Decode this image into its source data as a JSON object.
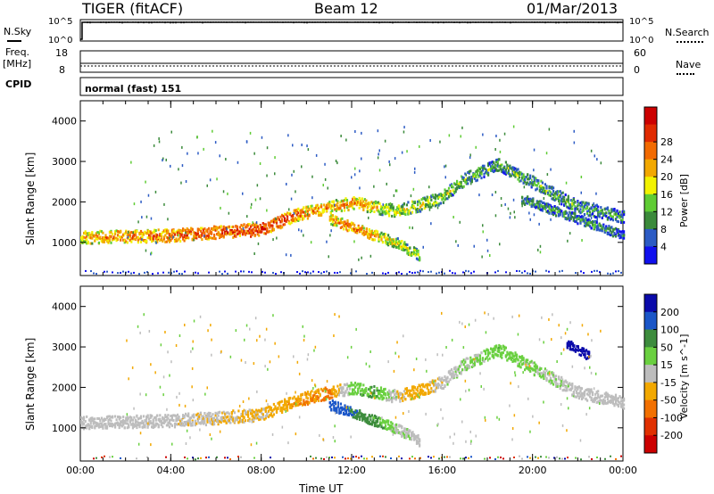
{
  "header": {
    "radar": "TIGER (fitACF)",
    "beam": "Beam 12",
    "date": "01/Mar/2013"
  },
  "strips": {
    "nsky_label": "N.Sky",
    "nsearch_label": "N.Search",
    "power_ticks": [
      "10^5",
      "10^0"
    ],
    "freq_label_top": "Freq.",
    "freq_label_bottom": "[MHz]",
    "freq_ticks": [
      "18",
      "8"
    ],
    "nave_label": "Nave",
    "nave_ticks": [
      "60",
      "0"
    ],
    "cpid_label": "CPID",
    "cpid_value": "normal (fast) 151"
  },
  "chart_data": [
    {
      "type": "heatmap",
      "title": "",
      "xlabel": "Time UT",
      "ylabel": "Slant Range [km]",
      "x_ticks": [
        "00:00",
        "04:00",
        "08:00",
        "12:00",
        "16:00",
        "20:00",
        "00:00"
      ],
      "y_ticks": [
        1000,
        2000,
        3000,
        4000
      ],
      "xlim_hours": [
        0,
        24
      ],
      "ylim_km": [
        180,
        4500
      ],
      "colorbar": {
        "label": "Power [dB]",
        "ticks": [
          4,
          8,
          12,
          16,
          20,
          24,
          28
        ],
        "colors": [
          "#1010ee",
          "#2c5bc4",
          "#3b8a3b",
          "#5fcc34",
          "#f2f200",
          "#f2a800",
          "#f26a00",
          "#e02a00",
          "#cc0000"
        ]
      },
      "bands": [
        {
          "t": [
            0,
            4,
            8,
            9.5,
            11,
            12,
            13,
            14,
            15,
            16,
            17,
            18.5,
            20,
            22,
            24
          ],
          "r": [
            1150,
            1200,
            1350,
            1700,
            1900,
            2000,
            1900,
            1800,
            1950,
            2150,
            2600,
            2950,
            2500,
            1900,
            1650
          ],
          "thick_km": 220,
          "power_db": [
            20,
            24,
            27,
            24,
            20,
            22,
            18,
            16,
            15,
            14,
            12,
            11,
            12,
            11,
            10
          ]
        },
        {
          "t": [
            11,
            12,
            13,
            14,
            15
          ],
          "r": [
            1600,
            1400,
            1200,
            1000,
            700
          ],
          "thick_km": 180,
          "power_db": [
            20,
            24,
            20,
            16,
            14
          ]
        },
        {
          "t": [
            19.5,
            21,
            22.5,
            24
          ],
          "r": [
            2100,
            1800,
            1500,
            1200
          ],
          "thick_km": 160,
          "power_db": [
            10,
            9,
            10,
            8
          ]
        }
      ]
    },
    {
      "type": "heatmap",
      "title": "",
      "xlabel": "Time UT",
      "ylabel": "Slant Range [km]",
      "x_ticks": [
        "00:00",
        "04:00",
        "08:00",
        "12:00",
        "16:00",
        "20:00",
        "00:00"
      ],
      "y_ticks": [
        1000,
        2000,
        3000,
        4000
      ],
      "xlim_hours": [
        0,
        24
      ],
      "ylim_km": [
        180,
        4500
      ],
      "colorbar": {
        "label": "Velocity [m s^-1]",
        "ticks": [
          200,
          100,
          50,
          15,
          -15,
          -50,
          -100,
          -200
        ],
        "colors": [
          "#0a0aaa",
          "#1a56c8",
          "#3d8c3d",
          "#6ad040",
          "#bdbdbd",
          "#f2a800",
          "#f27000",
          "#e03000",
          "#cc0000"
        ]
      },
      "bands": [
        {
          "t": [
            0,
            4,
            8,
            9.5,
            11,
            12,
            13,
            14,
            15,
            16,
            17,
            18.5,
            20,
            22,
            24
          ],
          "r": [
            1150,
            1200,
            1350,
            1700,
            1900,
            2000,
            1900,
            1800,
            1950,
            2150,
            2600,
            2950,
            2500,
            1900,
            1650
          ],
          "thick_km": 220,
          "velocity": [
            0,
            0,
            -20,
            -40,
            -60,
            30,
            60,
            -10,
            -40,
            0,
            10,
            40,
            20,
            0,
            0
          ]
        },
        {
          "t": [
            11,
            12,
            13,
            14,
            15
          ],
          "r": [
            1600,
            1400,
            1200,
            1000,
            700
          ],
          "thick_km": 180,
          "velocity": [
            200,
            100,
            60,
            10,
            0
          ]
        },
        {
          "t": [
            21.5,
            22.5
          ],
          "r": [
            3100,
            2800
          ],
          "thick_km": 160,
          "velocity": [
            220,
            220
          ]
        }
      ]
    }
  ]
}
